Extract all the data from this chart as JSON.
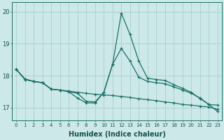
{
  "title": "",
  "xlabel": "Humidex (Indice chaleur)",
  "bg_color": "#cce8e8",
  "grid_color": "#aad0d0",
  "line_color": "#1a7068",
  "xlim": [
    -0.5,
    23.5
  ],
  "ylim": [
    16.6,
    20.3
  ],
  "yticks": [
    17,
    18,
    19,
    20
  ],
  "xticks": [
    0,
    1,
    2,
    3,
    4,
    5,
    6,
    7,
    8,
    9,
    10,
    11,
    12,
    13,
    14,
    15,
    16,
    17,
    18,
    19,
    20,
    21,
    22,
    23
  ],
  "series1": [
    18.2,
    17.9,
    17.82,
    17.78,
    17.58,
    17.55,
    17.52,
    17.48,
    17.45,
    17.42,
    17.4,
    17.38,
    17.35,
    17.32,
    17.28,
    17.25,
    17.22,
    17.18,
    17.15,
    17.1,
    17.08,
    17.05,
    17.02,
    16.95
  ],
  "series2": [
    18.2,
    17.88,
    17.82,
    17.78,
    17.58,
    17.55,
    17.5,
    17.45,
    17.2,
    17.18,
    17.48,
    18.35,
    18.85,
    18.45,
    17.95,
    17.82,
    17.78,
    17.75,
    17.65,
    17.55,
    17.45,
    17.3,
    17.1,
    17.08
  ],
  "series3": [
    18.2,
    17.88,
    17.82,
    17.78,
    17.58,
    17.55,
    17.5,
    17.3,
    17.15,
    17.15,
    17.48,
    18.35,
    19.95,
    19.28,
    18.45,
    17.92,
    17.88,
    17.85,
    17.72,
    17.6,
    17.48,
    17.28,
    17.1,
    16.88
  ]
}
